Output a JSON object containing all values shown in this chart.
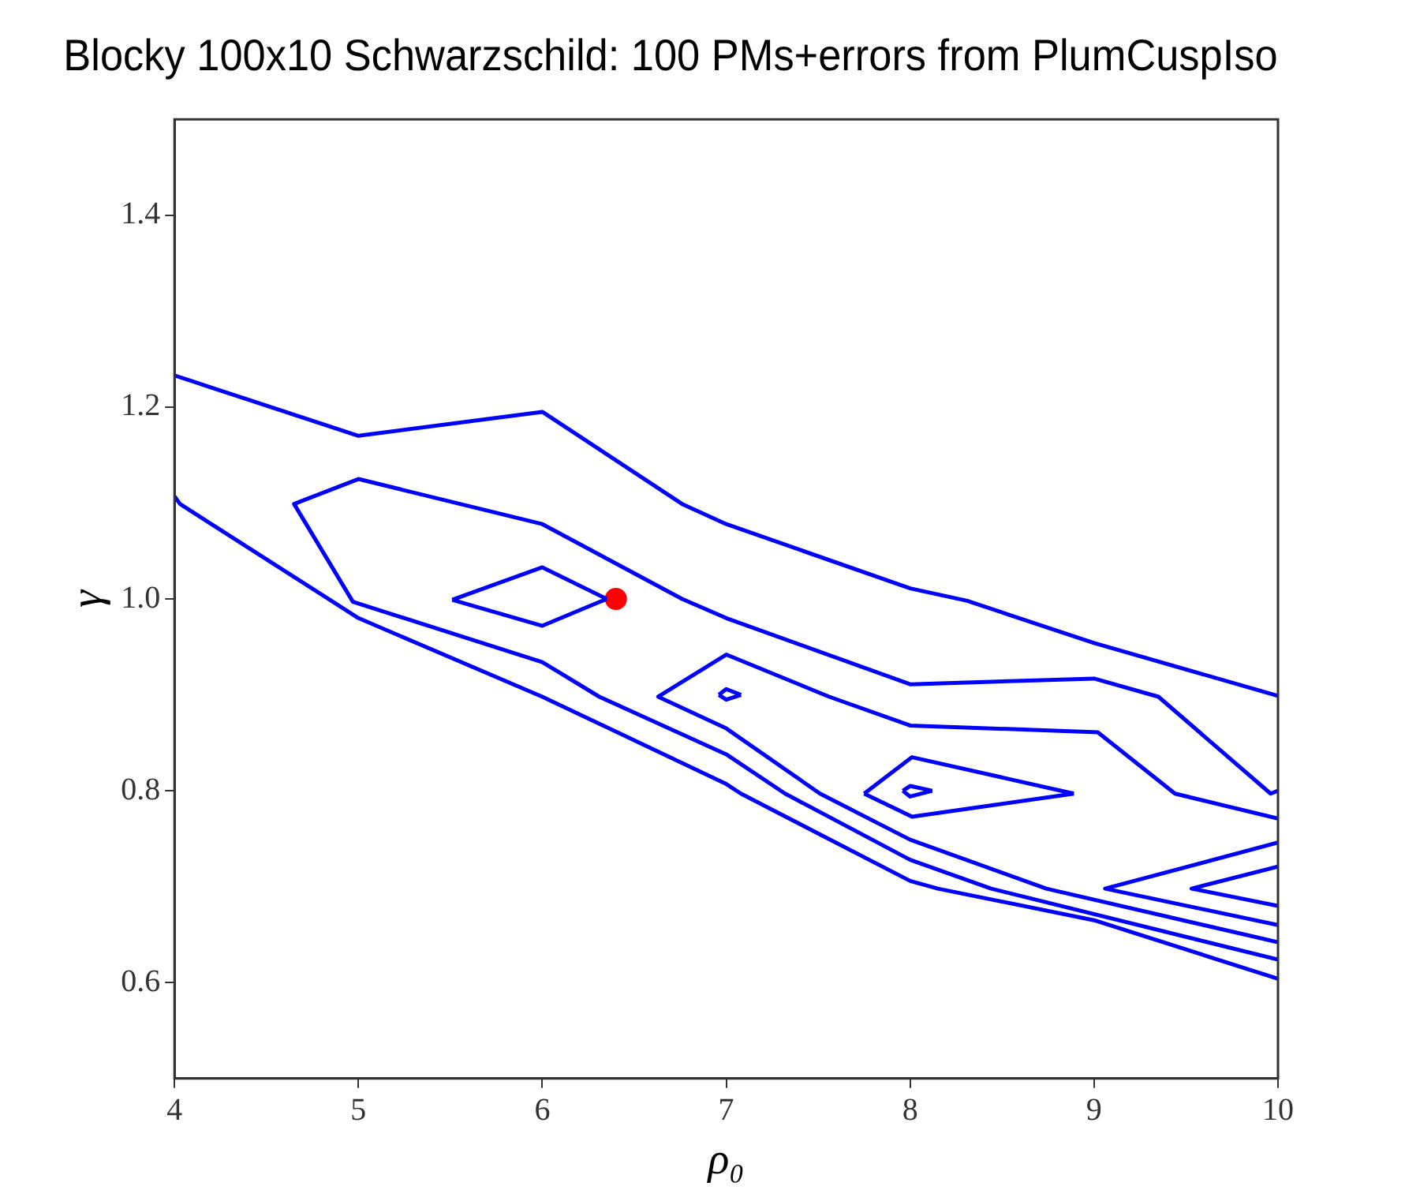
{
  "chart_data": {
    "type": "line",
    "title": "Blocky 100x10 Schwarzschild: 100 PMs+errors from PlumCuspIso",
    "xlabel": "ρ₀",
    "ylabel": "γ",
    "xlim": [
      4,
      10
    ],
    "xticks": [
      4,
      5,
      6,
      7,
      8,
      9,
      10
    ],
    "ylim": [
      0.5,
      1.5
    ],
    "yticks": [
      0.6,
      0.8,
      {
        "value": 1,
        "label": "1.0"
      },
      1.2,
      1.4
    ],
    "grid": false,
    "legend": false,
    "marker": "none",
    "line_style": "solid",
    "series": [
      {
        "type": "line",
        "color": "#0000ff",
        "x": [
          4,
          5,
          6,
          6.76,
          7,
          8,
          8.31,
          9,
          10
        ],
        "values": [
          1.233,
          1.17,
          1.195,
          1.099,
          1.078,
          1.011,
          0.998,
          0.954,
          0.899
        ]
      },
      {
        "type": "line",
        "color": "#0000ff",
        "x": [
          10,
          9.96,
          9.35,
          9.0,
          8.0,
          7.0,
          6.76,
          6.0,
          5.0,
          4.65,
          4.97,
          6.0,
          6.31,
          7.0,
          7.32,
          8.0,
          8.44,
          10
        ],
        "values": [
          0.8,
          0.797,
          0.898,
          0.917,
          0.911,
          0.98,
          1.0,
          1.078,
          1.125,
          1.099,
          0.997,
          0.934,
          0.898,
          0.838,
          0.797,
          0.728,
          0.698,
          0.624
        ]
      },
      {
        "type": "line",
        "color": "#0000ff",
        "x": [
          10,
          9.44,
          9.02,
          8.0,
          7.56,
          7.0,
          6.63,
          7.0,
          7.51,
          8.0,
          8.74,
          10
        ],
        "values": [
          0.771,
          0.797,
          0.861,
          0.868,
          0.898,
          0.942,
          0.898,
          0.865,
          0.797,
          0.749,
          0.698,
          0.642
        ]
      },
      {
        "type": "line",
        "color": "#0000ff",
        "x": [
          4,
          4.03,
          5,
          6,
          7,
          7.08,
          8,
          8.15,
          9,
          10
        ],
        "values": [
          1.107,
          1.099,
          0.98,
          0.898,
          0.807,
          0.797,
          0.706,
          0.698,
          0.665,
          0.604
        ]
      },
      {
        "type": "line",
        "color": "#0000ff",
        "x": [
          10,
          9.06,
          10
        ],
        "values": [
          0.746,
          0.698,
          0.66
        ]
      },
      {
        "type": "line",
        "color": "#0000ff",
        "x": [
          10,
          9.53,
          10
        ],
        "values": [
          0.721,
          0.698,
          0.68
        ]
      },
      {
        "type": "line",
        "color": "#0000ff",
        "x": [
          5.51,
          6,
          6.35
        ],
        "values": [
          0.999,
          1.033,
          1.0
        ]
      },
      {
        "type": "line",
        "color": "#0000ff",
        "x": [
          5.51,
          6,
          6.35
        ],
        "values": [
          0.999,
          0.972,
          1.0
        ]
      },
      {
        "type": "line",
        "color": "#0000ff",
        "x": [
          6.96,
          7.0,
          7.08
        ],
        "values": [
          0.9,
          0.906,
          0.9
        ]
      },
      {
        "type": "line",
        "color": "#0000ff",
        "x": [
          6.96,
          7.0,
          7.08
        ],
        "values": [
          0.9,
          0.895,
          0.9
        ]
      },
      {
        "type": "line",
        "color": "#0000ff",
        "x": [
          7.75,
          8.01,
          8.89
        ],
        "values": [
          0.797,
          0.835,
          0.797
        ]
      },
      {
        "type": "line",
        "color": "#0000ff",
        "x": [
          7.75,
          8.01,
          8.89
        ],
        "values": [
          0.797,
          0.773,
          0.797
        ]
      },
      {
        "type": "line",
        "color": "#0000ff",
        "x": [
          7.96,
          8.0,
          8.12
        ],
        "values": [
          0.8,
          0.805,
          0.8
        ]
      },
      {
        "type": "line",
        "color": "#0000ff",
        "x": [
          7.96,
          8.0,
          8.12
        ],
        "values": [
          0.8,
          0.794,
          0.8
        ]
      },
      {
        "type": "scatter",
        "color": "#ff0000",
        "marker": "circle",
        "x": [
          6.4
        ],
        "values": [
          1.0
        ]
      }
    ]
  }
}
